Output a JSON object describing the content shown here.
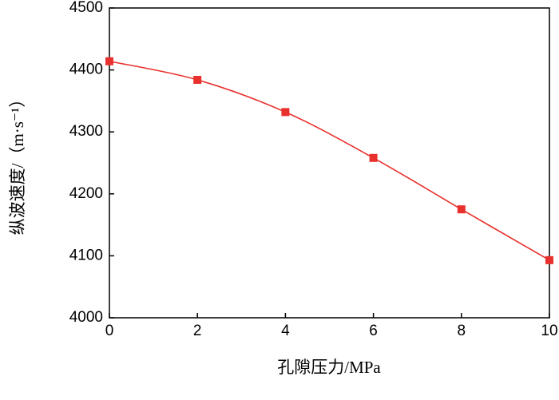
{
  "chart_data": {
    "type": "line",
    "x_label": "孔隙压力/MPa",
    "y_label": "纵波速度/（m·s⁻¹）",
    "x": [
      0,
      2,
      4,
      6,
      8,
      10
    ],
    "series": [
      {
        "color": "#e8302c",
        "values": [
          4414,
          4384,
          4332,
          4258,
          4175,
          4093
        ]
      }
    ],
    "xlim": [
      0,
      10
    ],
    "xticks": [
      0,
      2,
      4,
      6,
      8,
      10
    ],
    "ylim": [
      4000,
      4500
    ],
    "yticks": [
      4000,
      4100,
      4200,
      4300,
      4400,
      4500
    ],
    "grid": false
  }
}
